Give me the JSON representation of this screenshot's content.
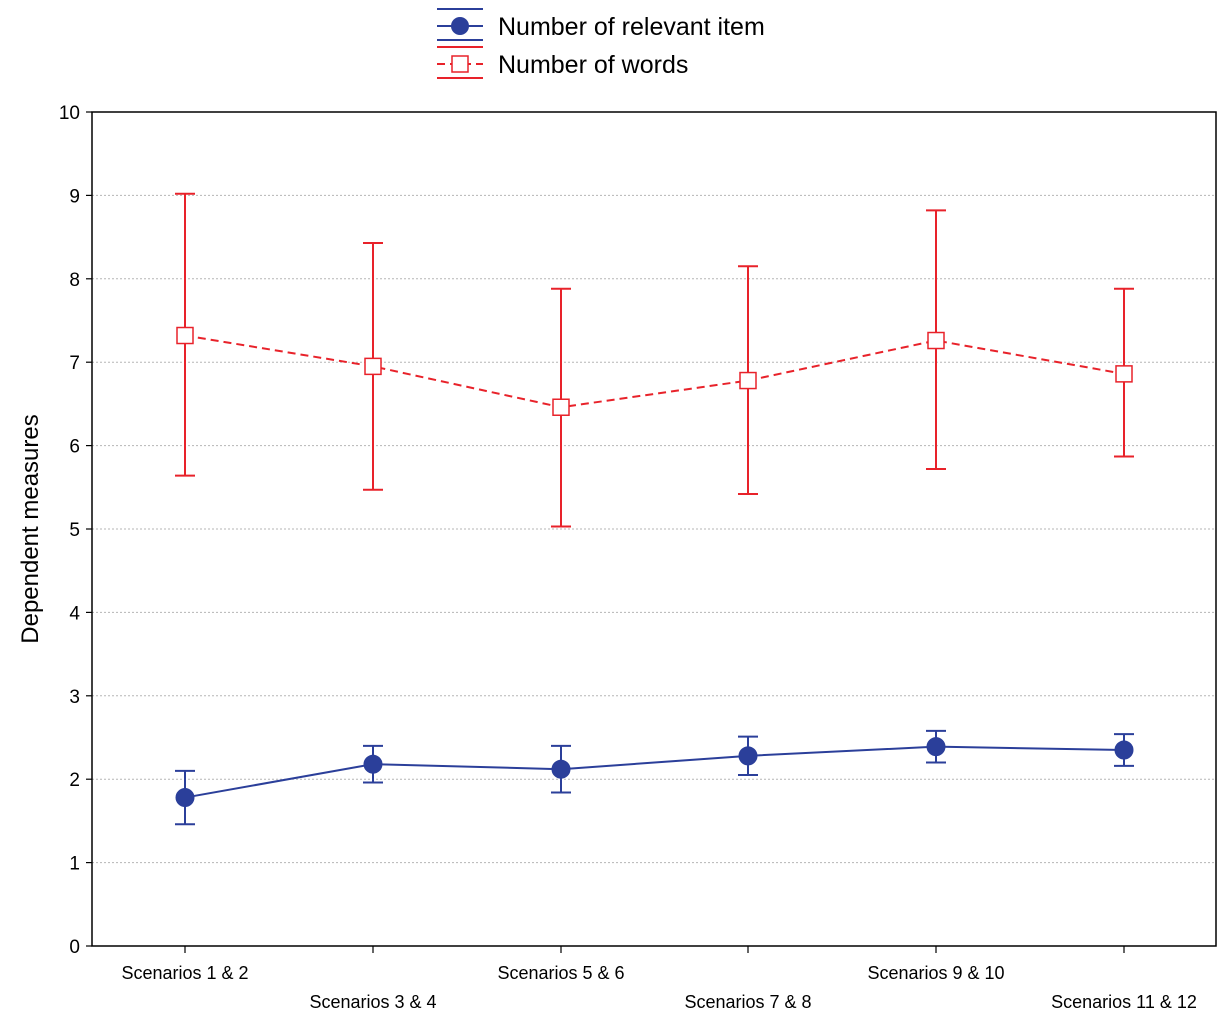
{
  "chart_data": {
    "type": "line",
    "categories": [
      "Scenarios 1 & 2",
      "Scenarios 3 & 4",
      "Scenarios 5 & 6",
      "Scenarios 7 & 8",
      "Scenarios 9 & 10",
      "Scenarios 11 & 12"
    ],
    "ylabel": "Dependent measures",
    "xlabel": "",
    "ylim": [
      0,
      10
    ],
    "yticks": [
      0,
      1,
      2,
      3,
      4,
      5,
      6,
      7,
      8,
      9,
      10
    ],
    "grid": true,
    "legend_position": "top-center",
    "series": [
      {
        "name": "Number of relevant item",
        "color": "#2b3f9a",
        "line_style": "solid",
        "marker": "filled-circle",
        "values": [
          1.78,
          2.18,
          2.12,
          2.28,
          2.39,
          2.35
        ],
        "error_low": [
          1.46,
          1.96,
          1.84,
          2.05,
          2.2,
          2.16
        ],
        "error_high": [
          2.1,
          2.4,
          2.4,
          2.51,
          2.58,
          2.54
        ]
      },
      {
        "name": "Number of words",
        "color": "#e8222a",
        "line_style": "dashed",
        "marker": "open-square",
        "values": [
          7.32,
          6.95,
          6.46,
          6.78,
          7.26,
          6.86
        ],
        "error_low": [
          5.64,
          5.47,
          5.03,
          5.42,
          5.72,
          5.87
        ],
        "error_high": [
          9.02,
          8.43,
          7.88,
          8.15,
          8.82,
          7.88
        ]
      }
    ]
  }
}
